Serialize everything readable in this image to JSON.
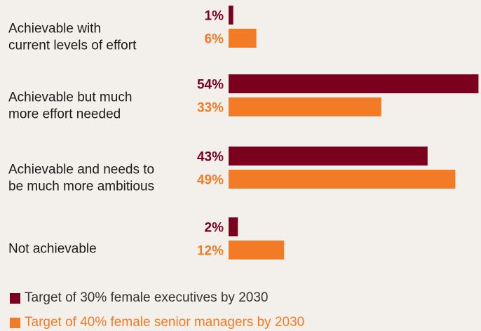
{
  "chart_data": {
    "type": "bar",
    "orientation": "horizontal",
    "categories": [
      [
        "Achievable with",
        "current levels of effort"
      ],
      [
        "Achievable but much",
        "more effort needed"
      ],
      [
        "Achievable and needs to",
        "be much more ambitious"
      ],
      [
        "Not achievable"
      ]
    ],
    "series": [
      {
        "name": "Target of 30% female executives by 2030",
        "color": "#7a001e",
        "values": [
          1,
          54,
          43,
          2
        ],
        "labels": [
          "1%",
          "54%",
          "43%",
          "2%"
        ]
      },
      {
        "name": "Target of 40% female senior managers by 2030",
        "color": "#f47b25",
        "values": [
          6,
          33,
          49,
          12
        ],
        "labels": [
          "6%",
          "33%",
          "49%",
          "12%"
        ]
      }
    ],
    "unit": "%",
    "xlim": [
      0,
      55
    ],
    "grid": false,
    "legend_position": "bottom-left",
    "background": "#f3efeb"
  }
}
